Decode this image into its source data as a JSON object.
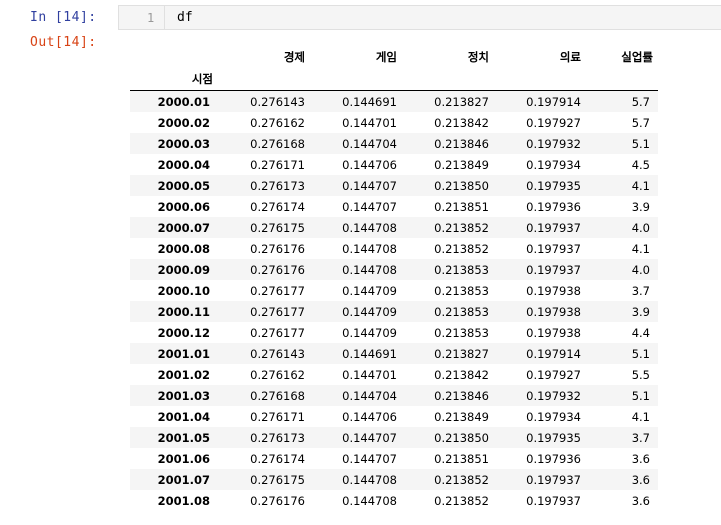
{
  "cell": {
    "in_prompt": "In [14]:",
    "out_prompt": "Out[14]:",
    "line_number": "1",
    "code": "df"
  },
  "dataframe": {
    "columns": [
      "경제",
      "게임",
      "정치",
      "의료",
      "실업률"
    ],
    "index_name": "시점",
    "rows": [
      [
        "2000.01",
        "0.276143",
        "0.144691",
        "0.213827",
        "0.197914",
        "5.7"
      ],
      [
        "2000.02",
        "0.276162",
        "0.144701",
        "0.213842",
        "0.197927",
        "5.7"
      ],
      [
        "2000.03",
        "0.276168",
        "0.144704",
        "0.213846",
        "0.197932",
        "5.1"
      ],
      [
        "2000.04",
        "0.276171",
        "0.144706",
        "0.213849",
        "0.197934",
        "4.5"
      ],
      [
        "2000.05",
        "0.276173",
        "0.144707",
        "0.213850",
        "0.197935",
        "4.1"
      ],
      [
        "2000.06",
        "0.276174",
        "0.144707",
        "0.213851",
        "0.197936",
        "3.9"
      ],
      [
        "2000.07",
        "0.276175",
        "0.144708",
        "0.213852",
        "0.197937",
        "4.0"
      ],
      [
        "2000.08",
        "0.276176",
        "0.144708",
        "0.213852",
        "0.197937",
        "4.1"
      ],
      [
        "2000.09",
        "0.276176",
        "0.144708",
        "0.213853",
        "0.197937",
        "4.0"
      ],
      [
        "2000.10",
        "0.276177",
        "0.144709",
        "0.213853",
        "0.197938",
        "3.7"
      ],
      [
        "2000.11",
        "0.276177",
        "0.144709",
        "0.213853",
        "0.197938",
        "3.9"
      ],
      [
        "2000.12",
        "0.276177",
        "0.144709",
        "0.213853",
        "0.197938",
        "4.4"
      ],
      [
        "2001.01",
        "0.276143",
        "0.144691",
        "0.213827",
        "0.197914",
        "5.1"
      ],
      [
        "2001.02",
        "0.276162",
        "0.144701",
        "0.213842",
        "0.197927",
        "5.5"
      ],
      [
        "2001.03",
        "0.276168",
        "0.144704",
        "0.213846",
        "0.197932",
        "5.1"
      ],
      [
        "2001.04",
        "0.276171",
        "0.144706",
        "0.213849",
        "0.197934",
        "4.1"
      ],
      [
        "2001.05",
        "0.276173",
        "0.144707",
        "0.213850",
        "0.197935",
        "3.7"
      ],
      [
        "2001.06",
        "0.276174",
        "0.144707",
        "0.213851",
        "0.197936",
        "3.6"
      ],
      [
        "2001.07",
        "0.276175",
        "0.144708",
        "0.213852",
        "0.197937",
        "3.6"
      ],
      [
        "2001.08",
        "0.276176",
        "0.144708",
        "0.213852",
        "0.197937",
        "3.6"
      ]
    ]
  }
}
